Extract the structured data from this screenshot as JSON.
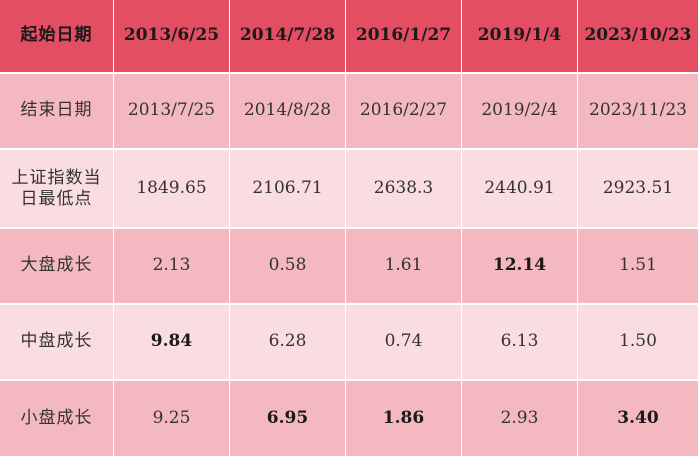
{
  "header": {
    "label": "起始日期",
    "dates": [
      "2013/6/25",
      "2014/7/28",
      "2016/1/27",
      "2019/1/4",
      "2023/10/23"
    ]
  },
  "rows": [
    {
      "label": "结束日期",
      "values": [
        "2013/7/25",
        "2014/8/28",
        "2016/2/27",
        "2019/2/4",
        "2023/11/23"
      ]
    },
    {
      "label": "上证指数当日最低点",
      "values": [
        "1849.65",
        "2106.71",
        "2638.3",
        "2440.91",
        "2923.51"
      ]
    },
    {
      "label": "大盘成长",
      "values": [
        "2.13",
        "0.58",
        "1.61",
        "12.14",
        "1.51"
      ]
    },
    {
      "label": "中盘成长",
      "values": [
        "9.84",
        "6.28",
        "0.74",
        "6.13",
        "1.50"
      ]
    },
    {
      "label": "小盘成长",
      "values": [
        "9.25",
        "6.95",
        "1.86",
        "2.93",
        "3.40"
      ]
    }
  ],
  "colors": {
    "header": "#e34e62",
    "row_dark": "#f4b8c0",
    "row_light": "#fadde0"
  }
}
